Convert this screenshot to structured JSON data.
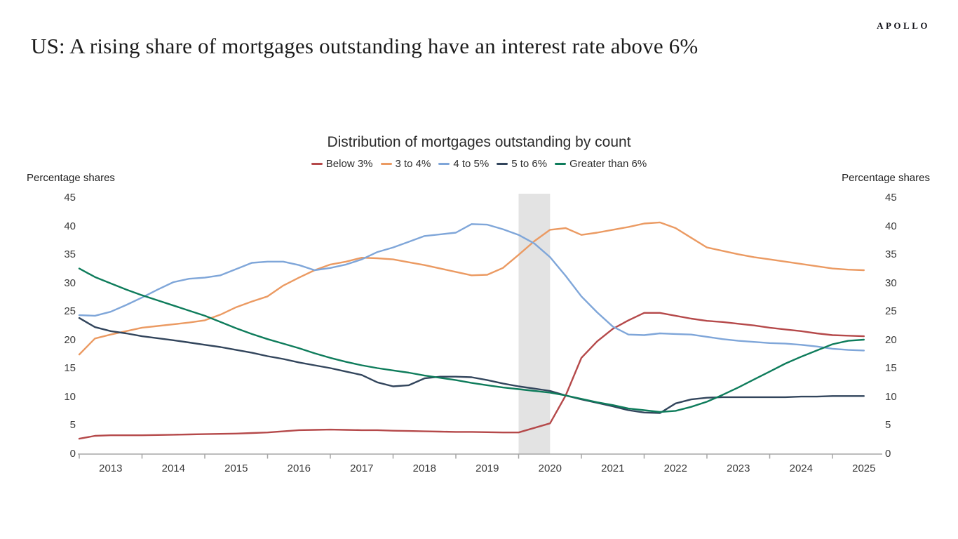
{
  "brand": "APOLLO",
  "page_title": "US: A rising share of mortgages outstanding have an interest rate above 6%",
  "chart_data": {
    "type": "line",
    "title": "Distribution of mortgages outstanding by count",
    "y_axis_label_left": "Percentage shares",
    "y_axis_label_right": "Percentage shares",
    "ylim": [
      0,
      45
    ],
    "y_ticks": [
      0,
      5,
      10,
      15,
      20,
      25,
      30,
      35,
      40,
      45
    ],
    "x_labels": [
      "2013",
      "2014",
      "2015",
      "2016",
      "2017",
      "2018",
      "2019",
      "2020",
      "2021",
      "2022",
      "2023",
      "2024",
      "2025"
    ],
    "x_start": 2013,
    "x_step": 0.25,
    "grid": "off",
    "legend_position": "top-center",
    "shaded_band": {
      "from": 2020.0,
      "to": 2020.5,
      "color": "#e3e3e3"
    },
    "axis_color": "#a6a6a6",
    "series": [
      {
        "name": "Below 3%",
        "color": "#b5494a",
        "values": [
          2.7,
          3.2,
          3.3,
          3.3,
          3.3,
          3.35,
          3.4,
          3.45,
          3.5,
          3.55,
          3.6,
          3.7,
          3.8,
          4.0,
          4.2,
          4.25,
          4.3,
          4.25,
          4.2,
          4.2,
          4.1,
          4.05,
          4.0,
          3.95,
          3.9,
          3.9,
          3.85,
          3.8,
          3.8,
          4.6,
          5.4,
          10.3,
          16.9,
          19.8,
          22.0,
          23.5,
          24.8,
          24.8,
          24.3,
          23.8,
          23.4,
          23.2,
          22.9,
          22.6,
          22.2,
          21.9,
          21.6,
          21.2,
          20.9,
          20.8,
          20.7
        ]
      },
      {
        "name": "3 to 4%",
        "color": "#eb9a62",
        "values": [
          17.5,
          20.3,
          21.0,
          21.6,
          22.2,
          22.5,
          22.8,
          23.1,
          23.5,
          24.5,
          25.8,
          26.8,
          27.7,
          29.6,
          31.0,
          32.3,
          33.3,
          33.8,
          34.5,
          34.4,
          34.2,
          33.7,
          33.2,
          32.6,
          32.0,
          31.4,
          31.5,
          32.7,
          35.0,
          37.4,
          39.4,
          39.7,
          38.5,
          38.9,
          39.4,
          39.9,
          40.5,
          40.7,
          39.7,
          38.0,
          36.3,
          35.7,
          35.1,
          34.6,
          34.2,
          33.8,
          33.4,
          33.0,
          32.6,
          32.4,
          32.3
        ]
      },
      {
        "name": "4 to 5%",
        "color": "#7fa6d9",
        "values": [
          24.4,
          24.3,
          25.0,
          26.2,
          27.5,
          28.9,
          30.2,
          30.8,
          31.0,
          31.4,
          32.5,
          33.6,
          33.8,
          33.8,
          33.2,
          32.3,
          32.7,
          33.3,
          34.2,
          35.5,
          36.3,
          37.3,
          38.3,
          38.6,
          38.9,
          40.4,
          40.3,
          39.5,
          38.5,
          37.0,
          34.6,
          31.3,
          27.7,
          24.9,
          22.4,
          21.0,
          20.9,
          21.2,
          21.1,
          21.0,
          20.6,
          20.2,
          19.9,
          19.7,
          19.5,
          19.4,
          19.2,
          18.9,
          18.5,
          18.3,
          18.2
        ]
      },
      {
        "name": "5 to 6%",
        "color": "#32455c",
        "values": [
          23.9,
          22.3,
          21.6,
          21.2,
          20.7,
          20.35,
          20.0,
          19.6,
          19.2,
          18.8,
          18.3,
          17.8,
          17.2,
          16.7,
          16.1,
          15.6,
          15.1,
          14.5,
          13.9,
          12.6,
          11.9,
          12.1,
          13.3,
          13.6,
          13.6,
          13.5,
          13.0,
          12.4,
          11.9,
          11.5,
          11.1,
          10.3,
          9.6,
          9.0,
          8.4,
          7.7,
          7.3,
          7.2,
          8.9,
          9.6,
          9.9,
          10.0,
          10.0,
          10.0,
          10.0,
          10.0,
          10.1,
          10.1,
          10.2,
          10.2,
          10.2
        ]
      },
      {
        "name": "Greater than 6%",
        "color": "#0e7c5b",
        "values": [
          32.6,
          31.1,
          30.0,
          28.9,
          27.9,
          27.0,
          26.1,
          25.2,
          24.3,
          23.2,
          22.1,
          21.1,
          20.2,
          19.4,
          18.6,
          17.7,
          16.9,
          16.2,
          15.6,
          15.1,
          14.7,
          14.3,
          13.8,
          13.4,
          13.0,
          12.5,
          12.1,
          11.7,
          11.4,
          11.1,
          10.8,
          10.3,
          9.7,
          9.1,
          8.6,
          8.0,
          7.7,
          7.4,
          7.6,
          8.3,
          9.2,
          10.4,
          11.7,
          13.1,
          14.5,
          15.9,
          17.1,
          18.2,
          19.3,
          19.9,
          20.1
        ]
      }
    ]
  }
}
